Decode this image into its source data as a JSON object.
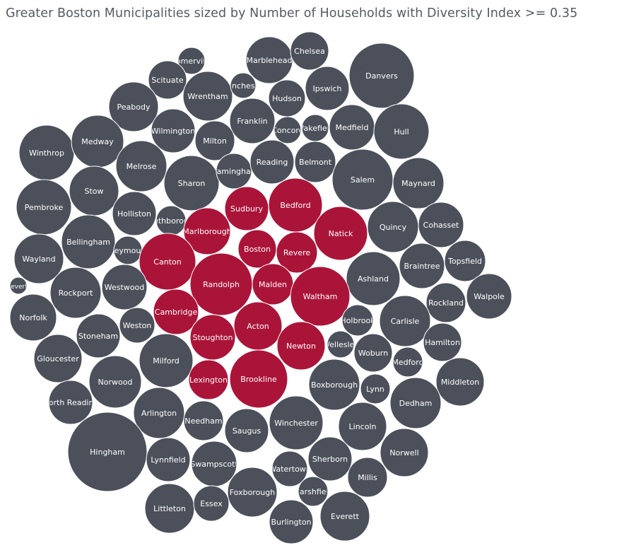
{
  "chart_data": {
    "type": "bubble",
    "title": "Greater Boston Municipalities sized by Number of Households with Diversity Index >= 0.35",
    "colors": {
      "highlighted": "#ab1439",
      "default": "#4b505b",
      "label": "#ffffff"
    },
    "legend": "none",
    "bubbles": [
      {
        "name": "Somerville",
        "label": "Somerville",
        "highlighted": false
      },
      {
        "name": "Marblehead",
        "label": "Marblehead",
        "highlighted": false
      },
      {
        "name": "Chelsea",
        "label": "Chelsea",
        "highlighted": false
      },
      {
        "name": "Danvers",
        "label": "Danvers",
        "highlighted": false
      },
      {
        "name": "Scituate",
        "label": "Scituate",
        "highlighted": false
      },
      {
        "name": "Wrentham",
        "label": "Wrentham",
        "highlighted": false
      },
      {
        "name": "Manchester",
        "label": "Manchester",
        "highlighted": false
      },
      {
        "name": "Hudson",
        "label": "Hudson",
        "highlighted": false
      },
      {
        "name": "Ipswich",
        "label": "Ipswich",
        "highlighted": false
      },
      {
        "name": "Peabody",
        "label": "Peabody",
        "highlighted": false
      },
      {
        "name": "Franklin",
        "label": "Franklin",
        "highlighted": false
      },
      {
        "name": "Concord",
        "label": "Concord",
        "highlighted": false
      },
      {
        "name": "Wakefield",
        "label": "Wakefield",
        "highlighted": false
      },
      {
        "name": "Medfield",
        "label": "Medfield",
        "highlighted": false
      },
      {
        "name": "Hull",
        "label": "Hull",
        "highlighted": false
      },
      {
        "name": "Wilmington",
        "label": "Wilmington",
        "highlighted": false
      },
      {
        "name": "Milton",
        "label": "Milton",
        "highlighted": false
      },
      {
        "name": "Winthrop",
        "label": "Winthrop",
        "highlighted": false
      },
      {
        "name": "Medway",
        "label": "Medway",
        "highlighted": false
      },
      {
        "name": "Melrose",
        "label": "Melrose",
        "highlighted": false
      },
      {
        "name": "Sharon",
        "label": "Sharon",
        "highlighted": false
      },
      {
        "name": "Framingham",
        "label": "Framingham",
        "highlighted": false
      },
      {
        "name": "Reading",
        "label": "Reading",
        "highlighted": false
      },
      {
        "name": "Belmont",
        "label": "Belmont",
        "highlighted": false
      },
      {
        "name": "Salem",
        "label": "Salem",
        "highlighted": false
      },
      {
        "name": "Maynard",
        "label": "Maynard",
        "highlighted": false
      },
      {
        "name": "Stow",
        "label": "Stow",
        "highlighted": false
      },
      {
        "name": "Sudbury",
        "label": "Sudbury",
        "highlighted": true
      },
      {
        "name": "Bedford",
        "label": "Bedford",
        "highlighted": true
      },
      {
        "name": "Pembroke",
        "label": "Pembroke",
        "highlighted": false
      },
      {
        "name": "Holliston",
        "label": "Holliston",
        "highlighted": false
      },
      {
        "name": "Southborough",
        "label": "Southborough",
        "highlighted": false
      },
      {
        "name": "Marlborough",
        "label": "Marlborough",
        "highlighted": true
      },
      {
        "name": "Natick",
        "label": "Natick",
        "highlighted": true
      },
      {
        "name": "Quincy",
        "label": "Quincy",
        "highlighted": false
      },
      {
        "name": "Cohasset",
        "label": "Cohasset",
        "highlighted": false
      },
      {
        "name": "Bellingham",
        "label": "Bellingham",
        "highlighted": false
      },
      {
        "name": "Weymouth",
        "label": "Weymouth",
        "highlighted": false
      },
      {
        "name": "Boston",
        "label": "Boston",
        "highlighted": true
      },
      {
        "name": "Revere",
        "label": "Revere",
        "highlighted": true
      },
      {
        "name": "Wayland",
        "label": "Wayland",
        "highlighted": false
      },
      {
        "name": "Canton",
        "label": "Canton",
        "highlighted": true
      },
      {
        "name": "Braintree",
        "label": "Braintree",
        "highlighted": false
      },
      {
        "name": "Topsfield",
        "label": "Topsfield",
        "highlighted": false
      },
      {
        "name": "Randolph",
        "label": "Randolph",
        "highlighted": true
      },
      {
        "name": "Malden",
        "label": "Malden",
        "highlighted": true
      },
      {
        "name": "Ashland",
        "label": "Ashland",
        "highlighted": false
      },
      {
        "name": "Beverly",
        "label": "Beverly",
        "highlighted": false
      },
      {
        "name": "Rockport",
        "label": "Rockport",
        "highlighted": false
      },
      {
        "name": "Westwood",
        "label": "Westwood",
        "highlighted": false
      },
      {
        "name": "Waltham",
        "label": "Waltham",
        "highlighted": true
      },
      {
        "name": "Walpole",
        "label": "Walpole",
        "highlighted": false
      },
      {
        "name": "Rockland",
        "label": "Rockland",
        "highlighted": false
      },
      {
        "name": "Norfolk",
        "label": "Norfolk",
        "highlighted": false
      },
      {
        "name": "Cambridge",
        "label": "Cambridge",
        "highlighted": true
      },
      {
        "name": "Holbrook",
        "label": "Holbrook",
        "highlighted": false
      },
      {
        "name": "Carlisle",
        "label": "Carlisle",
        "highlighted": false
      },
      {
        "name": "Weston",
        "label": "Weston",
        "highlighted": false
      },
      {
        "name": "Acton",
        "label": "Acton",
        "highlighted": true
      },
      {
        "name": "Stoneham",
        "label": "Stoneham",
        "highlighted": false
      },
      {
        "name": "Stoughton",
        "label": "Stoughton",
        "highlighted": true
      },
      {
        "name": "Hamilton",
        "label": "Hamilton",
        "highlighted": false
      },
      {
        "name": "Newton",
        "label": "Newton",
        "highlighted": true
      },
      {
        "name": "Wellesley",
        "label": "Wellesley",
        "highlighted": false
      },
      {
        "name": "Woburn",
        "label": "Woburn",
        "highlighted": false
      },
      {
        "name": "Gloucester",
        "label": "Gloucester",
        "highlighted": false
      },
      {
        "name": "Milford",
        "label": "Milford",
        "highlighted": false
      },
      {
        "name": "Medford",
        "label": "Medford",
        "highlighted": false
      },
      {
        "name": "Lexington",
        "label": "Lexington",
        "highlighted": true
      },
      {
        "name": "Brookline",
        "label": "Brookline",
        "highlighted": true
      },
      {
        "name": "Boxborough",
        "label": "Boxborough",
        "highlighted": false
      },
      {
        "name": "Middleton",
        "label": "Middleton",
        "highlighted": false
      },
      {
        "name": "Norwood",
        "label": "Norwood",
        "highlighted": false
      },
      {
        "name": "Lynn",
        "label": "Lynn",
        "highlighted": false
      },
      {
        "name": "North Reading",
        "label": "North Reading",
        "highlighted": false
      },
      {
        "name": "Dedham",
        "label": "Dedham",
        "highlighted": false
      },
      {
        "name": "Arlington",
        "label": "Arlington",
        "highlighted": false
      },
      {
        "name": "Needham",
        "label": "Needham",
        "highlighted": false
      },
      {
        "name": "Winchester",
        "label": "Winchester",
        "highlighted": false
      },
      {
        "name": "Saugus",
        "label": "Saugus",
        "highlighted": false
      },
      {
        "name": "Lincoln",
        "label": "Lincoln",
        "highlighted": false
      },
      {
        "name": "Hingham",
        "label": "Hingham",
        "highlighted": false
      },
      {
        "name": "Norwell",
        "label": "Norwell",
        "highlighted": false
      },
      {
        "name": "Lynnfield",
        "label": "Lynnfield",
        "highlighted": false
      },
      {
        "name": "Swampscott",
        "label": "Swampscott",
        "highlighted": false
      },
      {
        "name": "Sherborn",
        "label": "Sherborn",
        "highlighted": false
      },
      {
        "name": "Watertown",
        "label": "Watertown",
        "highlighted": false
      },
      {
        "name": "Millis",
        "label": "Millis",
        "highlighted": false
      },
      {
        "name": "Foxborough",
        "label": "Foxborough",
        "highlighted": false
      },
      {
        "name": "Marshfield",
        "label": "Marshfield",
        "highlighted": false
      },
      {
        "name": "Littleton",
        "label": "Littleton",
        "highlighted": false
      },
      {
        "name": "Essex",
        "label": "Essex",
        "highlighted": false
      },
      {
        "name": "Everett",
        "label": "Everett",
        "highlighted": false
      },
      {
        "name": "Burlington",
        "label": "Burlington",
        "highlighted": false
      }
    ]
  }
}
